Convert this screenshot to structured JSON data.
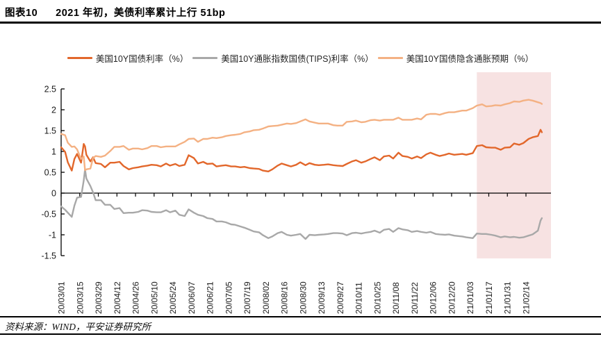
{
  "figure": {
    "label": "图表10",
    "title": "2021 年初，美债利率累计上行 51bp"
  },
  "source": {
    "text": "资料来源：WIND，平安证券研究所"
  },
  "colors": {
    "nominal_orange": "#E2672B",
    "tips_gray": "#A8A8A8",
    "breakeven_light_orange": "#F4B183",
    "highlight_pink": "#F7E2E2",
    "axis_black": "#000000"
  },
  "chart_data": {
    "type": "line",
    "title": "",
    "xlabel": "",
    "ylabel": "",
    "ylim": [
      -1.5,
      2.5
    ],
    "y_ticks": [
      "2.5",
      "2",
      "1.5",
      "1",
      "0.5",
      "0",
      "-0.5",
      "-1",
      "-1.5"
    ],
    "grid": false,
    "legend_position": "top",
    "x_labels": [
      "20/03/01",
      "20/03/15",
      "20/03/29",
      "20/04/12",
      "20/04/26",
      "20/05/10",
      "20/05/24",
      "20/06/07",
      "20/06/21",
      "20/07/05",
      "20/07/19",
      "20/08/02",
      "20/08/16",
      "20/08/30",
      "20/09/13",
      "20/09/27",
      "20/10/11",
      "20/10/25",
      "20/11/08",
      "20/11/22",
      "20/12/06",
      "20/12/20",
      "21/01/03",
      "21/01/17",
      "21/01/31",
      "21/02/14"
    ],
    "highlight": {
      "start_date": "21/01/08",
      "color": "#F7E2E2"
    },
    "dates": [
      "20/03/01",
      "20/03/04",
      "20/03/06",
      "20/03/09",
      "20/03/11",
      "20/03/13",
      "20/03/16",
      "20/03/18",
      "20/03/19",
      "20/03/20",
      "20/03/23",
      "20/03/25",
      "20/03/27",
      "20/03/31",
      "20/04/03",
      "20/04/07",
      "20/04/10",
      "20/04/14",
      "20/04/17",
      "20/04/21",
      "20/04/24",
      "20/04/28",
      "20/05/01",
      "20/05/05",
      "20/05/08",
      "20/05/12",
      "20/05/15",
      "20/05/19",
      "20/05/22",
      "20/05/26",
      "20/05/29",
      "20/06/02",
      "20/06/05",
      "20/06/09",
      "20/06/12",
      "20/06/16",
      "20/06/19",
      "20/06/23",
      "20/06/26",
      "20/06/30",
      "20/07/03",
      "20/07/07",
      "20/07/10",
      "20/07/14",
      "20/07/17",
      "20/07/21",
      "20/07/24",
      "20/07/28",
      "20/07/31",
      "20/08/04",
      "20/08/07",
      "20/08/11",
      "20/08/14",
      "20/08/18",
      "20/08/21",
      "20/08/25",
      "20/08/28",
      "20/09/01",
      "20/09/04",
      "20/09/08",
      "20/09/11",
      "20/09/15",
      "20/09/18",
      "20/09/22",
      "20/09/25",
      "20/09/29",
      "20/10/02",
      "20/10/06",
      "20/10/09",
      "20/10/13",
      "20/10/16",
      "20/10/20",
      "20/10/23",
      "20/10/27",
      "20/10/30",
      "20/11/03",
      "20/11/06",
      "20/11/10",
      "20/11/13",
      "20/11/17",
      "20/11/20",
      "20/11/24",
      "20/11/27",
      "20/12/01",
      "20/12/04",
      "20/12/08",
      "20/12/11",
      "20/12/15",
      "20/12/18",
      "20/12/22",
      "20/12/28",
      "20/12/31",
      "21/01/05",
      "21/01/08",
      "21/01/12",
      "21/01/15",
      "21/01/19",
      "21/01/22",
      "21/01/26",
      "21/01/29",
      "21/02/02",
      "21/02/05",
      "21/02/09",
      "21/02/12",
      "21/02/16",
      "21/02/19",
      "21/02/23",
      "21/02/25",
      "21/02/26"
    ],
    "series": [
      {
        "name": "美国10Y国债利率（%）",
        "color": "#E2672B",
        "values": [
          1.1,
          0.99,
          0.74,
          0.54,
          0.82,
          0.94,
          0.73,
          1.18,
          1.12,
          0.92,
          0.76,
          0.86,
          0.72,
          0.7,
          0.62,
          0.73,
          0.73,
          0.75,
          0.65,
          0.57,
          0.6,
          0.62,
          0.64,
          0.66,
          0.68,
          0.67,
          0.64,
          0.71,
          0.66,
          0.7,
          0.65,
          0.68,
          0.91,
          0.84,
          0.71,
          0.75,
          0.7,
          0.71,
          0.64,
          0.66,
          0.67,
          0.64,
          0.64,
          0.62,
          0.63,
          0.6,
          0.59,
          0.58,
          0.54,
          0.52,
          0.57,
          0.66,
          0.71,
          0.67,
          0.64,
          0.68,
          0.74,
          0.67,
          0.72,
          0.68,
          0.67,
          0.68,
          0.69,
          0.67,
          0.66,
          0.65,
          0.7,
          0.76,
          0.79,
          0.73,
          0.76,
          0.82,
          0.86,
          0.79,
          0.88,
          0.9,
          0.83,
          0.97,
          0.89,
          0.87,
          0.83,
          0.88,
          0.84,
          0.93,
          0.97,
          0.92,
          0.89,
          0.92,
          0.95,
          0.92,
          0.94,
          0.92,
          0.96,
          1.13,
          1.15,
          1.1,
          1.09,
          1.09,
          1.04,
          1.09,
          1.1,
          1.19,
          1.16,
          1.2,
          1.3,
          1.34,
          1.37,
          1.52,
          1.46
        ]
      },
      {
        "name": "美国10Y通胀指数国债(TIPS)利率（%）",
        "color": "#A8A8A8",
        "values": [
          -0.32,
          -0.4,
          -0.47,
          -0.57,
          -0.3,
          -0.11,
          -0.09,
          0.3,
          0.57,
          0.35,
          0.17,
          0.02,
          -0.17,
          -0.17,
          -0.28,
          -0.28,
          -0.38,
          -0.36,
          -0.48,
          -0.47,
          -0.47,
          -0.45,
          -0.41,
          -0.42,
          -0.45,
          -0.46,
          -0.46,
          -0.41,
          -0.46,
          -0.42,
          -0.52,
          -0.55,
          -0.39,
          -0.47,
          -0.52,
          -0.55,
          -0.6,
          -0.62,
          -0.68,
          -0.68,
          -0.7,
          -0.75,
          -0.76,
          -0.8,
          -0.83,
          -0.88,
          -0.92,
          -0.94,
          -1.01,
          -1.08,
          -1.04,
          -0.96,
          -0.93,
          -1.0,
          -1.02,
          -1.0,
          -0.98,
          -1.1,
          -1.0,
          -1.01,
          -1.0,
          -0.99,
          -0.98,
          -0.96,
          -0.96,
          -0.97,
          -1.01,
          -0.96,
          -0.95,
          -0.97,
          -0.95,
          -0.93,
          -0.9,
          -0.95,
          -0.88,
          -0.86,
          -0.93,
          -0.84,
          -0.87,
          -0.89,
          -0.93,
          -0.91,
          -0.93,
          -0.95,
          -0.93,
          -0.98,
          -0.99,
          -1.0,
          -0.99,
          -1.02,
          -1.04,
          -1.06,
          -1.08,
          -0.97,
          -0.98,
          -0.98,
          -1.0,
          -1.02,
          -1.06,
          -1.04,
          -1.06,
          -1.05,
          -1.07,
          -1.06,
          -1.02,
          -0.99,
          -0.9,
          -0.66,
          -0.6
        ]
      },
      {
        "name": "美国10Y国债隐含通胀预期（%）",
        "color": "#F4B183",
        "values": [
          1.42,
          1.39,
          1.21,
          1.11,
          1.12,
          1.05,
          0.82,
          0.88,
          0.55,
          0.57,
          0.59,
          0.84,
          0.89,
          0.87,
          0.9,
          1.01,
          1.11,
          1.11,
          1.13,
          1.04,
          1.07,
          1.07,
          1.05,
          1.08,
          1.13,
          1.13,
          1.1,
          1.12,
          1.12,
          1.12,
          1.17,
          1.23,
          1.3,
          1.31,
          1.23,
          1.3,
          1.3,
          1.33,
          1.32,
          1.34,
          1.37,
          1.39,
          1.4,
          1.42,
          1.46,
          1.48,
          1.51,
          1.52,
          1.55,
          1.6,
          1.61,
          1.62,
          1.64,
          1.67,
          1.66,
          1.68,
          1.72,
          1.77,
          1.72,
          1.69,
          1.67,
          1.67,
          1.67,
          1.63,
          1.62,
          1.62,
          1.71,
          1.72,
          1.74,
          1.7,
          1.71,
          1.75,
          1.76,
          1.74,
          1.76,
          1.76,
          1.76,
          1.81,
          1.76,
          1.76,
          1.76,
          1.79,
          1.77,
          1.88,
          1.9,
          1.9,
          1.88,
          1.92,
          1.94,
          1.94,
          1.98,
          1.98,
          2.04,
          2.1,
          2.13,
          2.08,
          2.09,
          2.11,
          2.1,
          2.13,
          2.16,
          2.2,
          2.19,
          2.22,
          2.24,
          2.22,
          2.18,
          2.16,
          2.14
        ]
      }
    ]
  }
}
